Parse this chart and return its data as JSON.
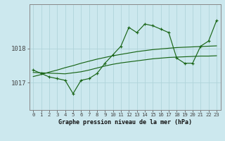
{
  "title": "Graphe pression niveau de la mer (hPa)",
  "background_color": "#cce8ee",
  "grid_color": "#b0d4da",
  "line_color": "#1a6618",
  "x_labels": [
    "0",
    "1",
    "2",
    "3",
    "4",
    "5",
    "6",
    "7",
    "8",
    "9",
    "10",
    "11",
    "12",
    "13",
    "14",
    "15",
    "16",
    "17",
    "18",
    "19",
    "20",
    "21",
    "22",
    "23"
  ],
  "y_ticks": [
    1017,
    1018
  ],
  "ylim": [
    1016.2,
    1019.3
  ],
  "xlim": [
    -0.5,
    23.5
  ],
  "main_data": [
    1017.37,
    1017.27,
    1017.17,
    1017.12,
    1017.07,
    1016.68,
    1017.07,
    1017.12,
    1017.27,
    1017.57,
    1017.82,
    1018.07,
    1018.62,
    1018.47,
    1018.72,
    1018.67,
    1018.57,
    1018.47,
    1017.72,
    1017.57,
    1017.57,
    1018.07,
    1018.22,
    1018.82
  ],
  "smooth1_data": [
    1017.3,
    1017.29,
    1017.28,
    1017.27,
    1017.26,
    1017.29,
    1017.32,
    1017.37,
    1017.43,
    1017.49,
    1017.54,
    1017.58,
    1017.61,
    1017.64,
    1017.67,
    1017.7,
    1017.72,
    1017.74,
    1017.75,
    1017.76,
    1017.77,
    1017.78,
    1017.78,
    1017.79
  ],
  "trend_data": [
    1017.18,
    1017.24,
    1017.31,
    1017.37,
    1017.44,
    1017.5,
    1017.57,
    1017.63,
    1017.69,
    1017.74,
    1017.79,
    1017.83,
    1017.87,
    1017.91,
    1017.94,
    1017.97,
    1017.99,
    1018.01,
    1018.03,
    1018.04,
    1018.05,
    1018.06,
    1018.07,
    1018.08
  ]
}
